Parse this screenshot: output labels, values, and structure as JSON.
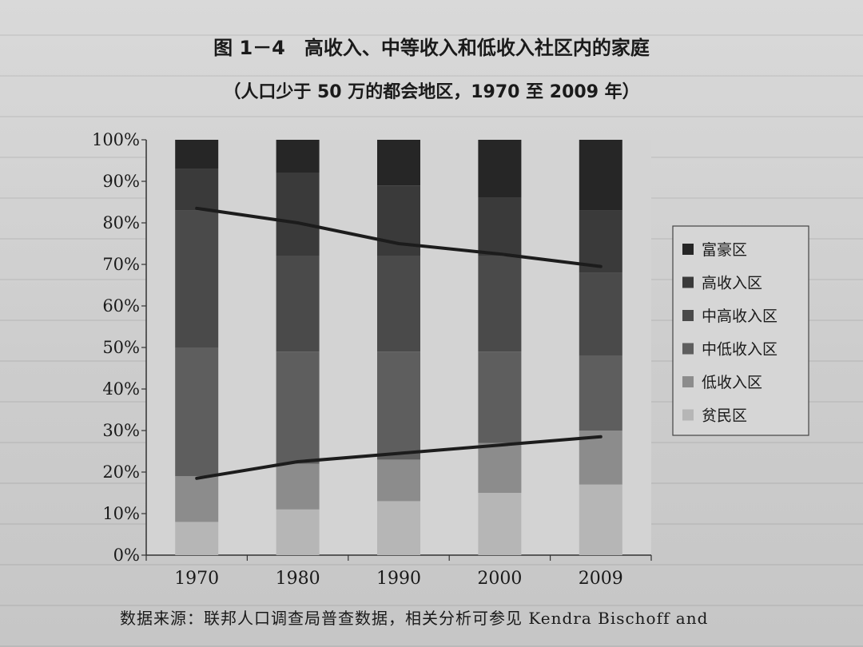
{
  "title_line1": "图 1－4　高收入、中等收入和低收入社区内的家庭",
  "title_line2": "（人口少于 50 万的都会地区，1970 至 2009 年）",
  "source_note": "数据来源：联邦人口调查局普查数据，相关分析可参见 Kendra Bischoff and",
  "colors": {
    "富豪区": "#262626",
    "高收入区": "#3a3a3a",
    "中高收入区": "#4a4a4a",
    "中低收入区": "#5e5e5e",
    "低收入区": "#8c8c8c",
    "贫民区": "#b6b6b6",
    "trend_line": "#1c1c1c"
  },
  "chart_data": {
    "type": "bar",
    "stacked": true,
    "categories": [
      "1970",
      "1980",
      "1990",
      "2000",
      "2009"
    ],
    "ylim": [
      0,
      100
    ],
    "yticks": [
      "0%",
      "10%",
      "20%",
      "30%",
      "40%",
      "50%",
      "60%",
      "70%",
      "80%",
      "90%",
      "100%"
    ],
    "series": [
      {
        "name": "贫民区",
        "values": [
          8,
          11,
          13,
          15,
          17
        ]
      },
      {
        "name": "低收入区",
        "values": [
          11,
          11,
          10,
          12,
          13
        ]
      },
      {
        "name": "中低收入区",
        "values": [
          31,
          27,
          26,
          22,
          18
        ]
      },
      {
        "name": "中高收入区",
        "values": [
          33,
          23,
          23,
          23,
          20
        ]
      },
      {
        "name": "高收入区",
        "values": [
          10,
          20,
          17,
          14,
          15
        ]
      },
      {
        "name": "富豪区",
        "values": [
          7,
          8,
          11,
          14,
          17
        ]
      }
    ],
    "lines": [
      {
        "values": [
          83.5,
          80,
          75,
          72.5,
          69.5
        ]
      },
      {
        "values": [
          18.5,
          22.5,
          24.5,
          26.5,
          28.5
        ]
      }
    ],
    "legend": {
      "placement": "right",
      "order": [
        "富豪区",
        "高收入区",
        "中高收入区",
        "中低收入区",
        "低收入区",
        "贫民区"
      ]
    },
    "grid": false
  }
}
